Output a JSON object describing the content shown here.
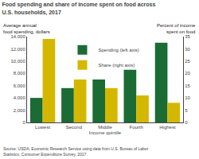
{
  "chart_data": {
    "type": "bar",
    "title": "Food spending and share of income spent on food across\nU.S. households, 2017",
    "categories": [
      "Lowest",
      "Second",
      "Middle",
      "Fourth",
      "Highest"
    ],
    "series": [
      {
        "name": "Spending (left axis)",
        "color": "#1a6b34",
        "values": [
          4000,
          5600,
          7000,
          8600,
          13000
        ]
      },
      {
        "name": "Share (right axis)",
        "color": "#d4b800",
        "values": [
          34,
          17.5,
          14,
          11,
          8
        ],
        "axis": "y2"
      }
    ],
    "xlabel": "Income quintile",
    "ylabel": "Average annual\nfood spending, dollars",
    "y2label": "Percent of income\nspent on food",
    "ylim": [
      0,
      14000
    ],
    "yticks": [
      0,
      {
        "value": 2000,
        "label": "2,000"
      },
      {
        "value": 4000,
        "label": "4,000"
      },
      {
        "value": 6000,
        "label": "6,000"
      },
      {
        "value": 8000,
        "label": "8,000"
      },
      {
        "value": 10000,
        "label": "10,000"
      },
      {
        "value": 12000,
        "label": "12,000"
      },
      {
        "value": 14000,
        "label": "14,000"
      }
    ],
    "y2lim": [
      0,
      35
    ],
    "y2ticks": [
      0,
      5,
      10,
      15,
      20,
      25,
      30,
      35
    ],
    "annotations": [
      "Source: USDA, Economic Research Service using data from U.S. Bureau of Labor\nStatistics, Consumer Expenditure Survey, 2017."
    ],
    "grid": false,
    "legend": "upper center"
  }
}
